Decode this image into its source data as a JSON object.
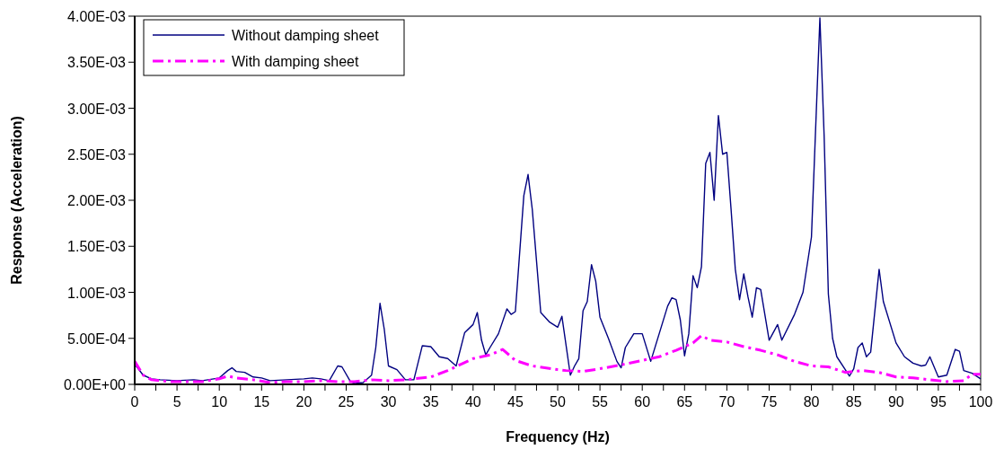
{
  "chart_data": {
    "type": "line",
    "xlabel": "Frequency (Hz)",
    "ylabel": "Response (Acceleration)",
    "xlim": [
      0,
      100
    ],
    "xticks": [
      0,
      {
        "value": 2.5,
        "label": null
      },
      5,
      {
        "value": 7.5,
        "label": null
      },
      10,
      {
        "value": 12.5,
        "label": null
      },
      15,
      {
        "value": 17.5,
        "label": null
      },
      20,
      {
        "value": 22.5,
        "label": null
      },
      25,
      {
        "value": 27.5,
        "label": null
      },
      30,
      {
        "value": 32.5,
        "label": null
      },
      35,
      {
        "value": 37.5,
        "label": null
      },
      40,
      {
        "value": 42.5,
        "label": null
      },
      45,
      {
        "value": 47.5,
        "label": null
      },
      50,
      {
        "value": 52.5,
        "label": null
      },
      55,
      {
        "value": 57.5,
        "label": null
      },
      60,
      {
        "value": 62.5,
        "label": null
      },
      65,
      {
        "value": 67.5,
        "label": null
      },
      70,
      {
        "value": 72.5,
        "label": null
      },
      75,
      {
        "value": 77.5,
        "label": null
      },
      80,
      {
        "value": 82.5,
        "label": null
      },
      85,
      {
        "value": 87.5,
        "label": null
      },
      90,
      {
        "value": 92.5,
        "label": null
      },
      95,
      {
        "value": 97.5,
        "label": null
      },
      100
    ],
    "ylim": [
      0,
      0.004
    ],
    "yticks": [
      {
        "value": 0,
        "label": "0.00E+00"
      },
      {
        "value": 0.0005,
        "label": "5.00E-04"
      },
      {
        "value": 0.001,
        "label": "1.00E-03"
      },
      {
        "value": 0.0015,
        "label": "1.50E-03"
      },
      {
        "value": 0.002,
        "label": "2.00E-03"
      },
      {
        "value": 0.0025,
        "label": "2.50E-03"
      },
      {
        "value": 0.003,
        "label": "3.00E-03"
      },
      {
        "value": 0.0035,
        "label": "3.50E-03"
      },
      {
        "value": 0.004,
        "label": "4.00E-03"
      }
    ],
    "grid": false,
    "legend": "top left",
    "marker": "none",
    "series": [
      {
        "name": "Without damping sheet",
        "color": "#000080",
        "line_style": "solid",
        "x": [
          0,
          1,
          2,
          3,
          5,
          7,
          8,
          10,
          11,
          11.5,
          12,
          13,
          14,
          15,
          16,
          18,
          20,
          21,
          22,
          23,
          24,
          24.5,
          25.5,
          26,
          27,
          28,
          28.5,
          29,
          29.5,
          30,
          31,
          32,
          33,
          34,
          35,
          36,
          37,
          38,
          39,
          40,
          40.5,
          41,
          41.5,
          42,
          43,
          44,
          44.5,
          45,
          46,
          46.5,
          47,
          48,
          49,
          50,
          50.5,
          51.5,
          52,
          52.5,
          53,
          53.5,
          54,
          54.5,
          55,
          56,
          57,
          57.5,
          58,
          59,
          60,
          61,
          62,
          63,
          63.5,
          64,
          64.5,
          65,
          65.5,
          66,
          66.5,
          67,
          67.5,
          68,
          68.5,
          69,
          69.5,
          70,
          70.5,
          71,
          71.5,
          72,
          72.5,
          73,
          73.5,
          74,
          75,
          76,
          76.5,
          78,
          79,
          80,
          81,
          81.5,
          82,
          82.5,
          83,
          84,
          84.5,
          85,
          85.5,
          86,
          86.5,
          87,
          88,
          88.5,
          90,
          91,
          92,
          93,
          93.5,
          94,
          95,
          96,
          97,
          97.5,
          98,
          99,
          100
        ],
        "values": [
          0.00022,
          0.0001,
          6e-05,
          5e-05,
          4e-05,
          5e-05,
          4e-05,
          7e-05,
          0.00015,
          0.00018,
          0.00014,
          0.00013,
          8e-05,
          7e-05,
          4e-05,
          5e-05,
          6e-05,
          7e-05,
          6e-05,
          4e-05,
          0.0002,
          0.00019,
          3e-05,
          1e-05,
          2e-05,
          0.0001,
          0.0004,
          0.00088,
          0.0006,
          0.0002,
          0.00016,
          5e-05,
          5e-05,
          0.00042,
          0.00041,
          0.0003,
          0.00028,
          0.0002,
          0.00056,
          0.00065,
          0.00078,
          0.00048,
          0.00032,
          0.0004,
          0.00055,
          0.00082,
          0.00076,
          0.00079,
          0.00205,
          0.00228,
          0.0019,
          0.00078,
          0.00068,
          0.00062,
          0.00074,
          0.0001,
          0.0002,
          0.00028,
          0.0008,
          0.0009,
          0.0013,
          0.00112,
          0.00073,
          0.0005,
          0.00025,
          0.00018,
          0.0004,
          0.00055,
          0.00055,
          0.00025,
          0.00055,
          0.00085,
          0.00094,
          0.00092,
          0.0007,
          0.00031,
          0.00055,
          0.00118,
          0.00105,
          0.00128,
          0.0024,
          0.00252,
          0.002,
          0.00292,
          0.0025,
          0.00252,
          0.0019,
          0.00125,
          0.00092,
          0.0012,
          0.00095,
          0.00073,
          0.00105,
          0.00103,
          0.00048,
          0.00065,
          0.00048,
          0.00076,
          0.001,
          0.0016,
          0.00398,
          0.0027,
          0.00098,
          0.0005,
          0.0003,
          0.00016,
          9e-05,
          0.00017,
          0.0004,
          0.00045,
          0.0003,
          0.00035,
          0.00125,
          0.0009,
          0.00045,
          0.0003,
          0.00023,
          0.0002,
          0.00021,
          0.0003,
          8e-05,
          0.0001,
          0.00038,
          0.00036,
          0.00015,
          0.00012,
          6e-05
        ]
      },
      {
        "name": "With damping sheet",
        "color": "#ff00ff",
        "line_style": "dashed",
        "x": [
          0,
          1,
          2,
          4,
          8,
          10,
          11,
          12,
          14,
          16,
          18,
          20,
          22,
          24,
          26,
          28,
          30,
          32,
          35,
          37,
          40,
          42,
          43.5,
          45,
          47,
          50,
          51,
          53,
          55,
          58,
          60,
          62,
          64,
          66,
          67,
          68,
          70,
          72,
          74,
          76,
          78,
          80,
          82,
          84,
          86,
          88,
          90,
          92,
          94,
          96,
          98,
          99,
          100
        ],
        "values": [
          0.00025,
          0.0001,
          5e-05,
          3e-05,
          3e-05,
          6e-05,
          9e-05,
          7e-05,
          5e-05,
          2e-05,
          3e-05,
          3e-05,
          4e-05,
          3e-05,
          3e-05,
          5e-05,
          4e-05,
          5e-05,
          8e-05,
          0.00015,
          0.00028,
          0.00032,
          0.00038,
          0.00026,
          0.0002,
          0.00016,
          0.00015,
          0.00014,
          0.00017,
          0.00022,
          0.00026,
          0.0003,
          0.00037,
          0.00045,
          0.00053,
          0.00048,
          0.00046,
          0.00041,
          0.00037,
          0.00032,
          0.00025,
          0.0002,
          0.00019,
          0.00013,
          0.00015,
          0.00013,
          8e-05,
          7e-05,
          5e-05,
          3e-05,
          4e-05,
          0.00011,
          0.00011
        ]
      }
    ]
  }
}
